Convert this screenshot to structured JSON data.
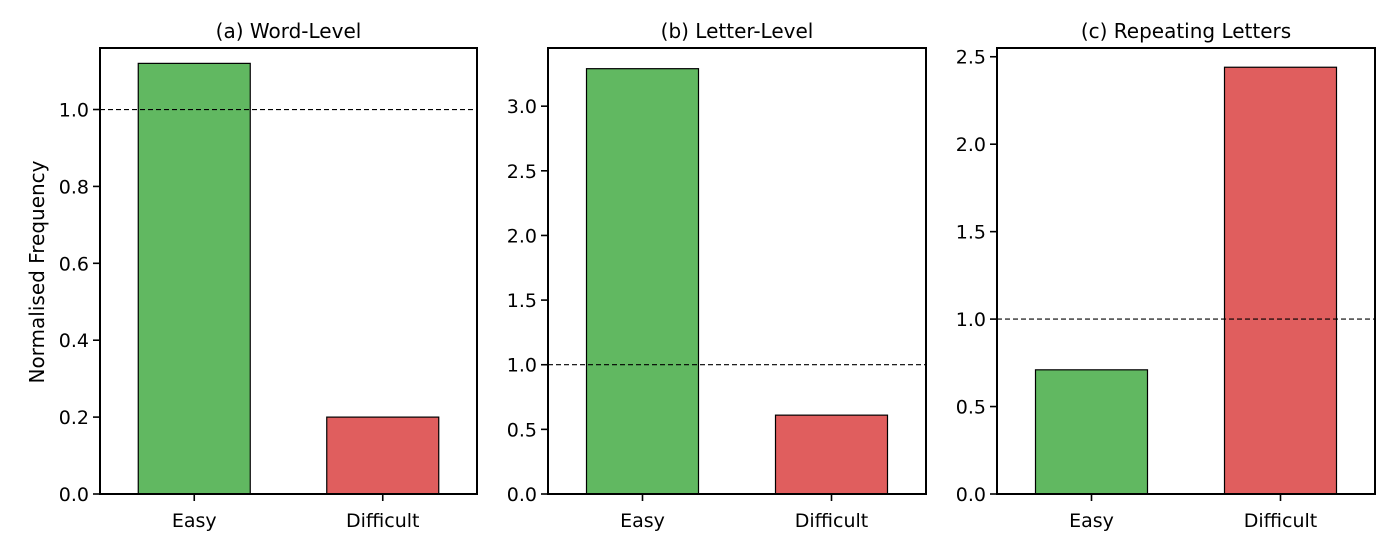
{
  "figure": {
    "ylabel": "Normalised Frequency",
    "reference_value": 1.0
  },
  "chart_data": [
    {
      "type": "bar",
      "title": "(a) Word-Level",
      "categories": [
        "Easy",
        "Difficult"
      ],
      "values": [
        1.12,
        0.2
      ],
      "colors": [
        "#61b861",
        "#e05e5e"
      ],
      "ylim": [
        0,
        1.16
      ],
      "yticks": [
        0.0,
        0.2,
        0.4,
        0.6,
        0.8,
        1.0
      ],
      "ytick_labels": [
        "0.0",
        "0.2",
        "0.4",
        "0.6",
        "0.8",
        "1.0"
      ],
      "reference_line": 1.0,
      "xlabel": "",
      "ylabel": "Normalised Frequency"
    },
    {
      "type": "bar",
      "title": "(b) Letter-Level",
      "categories": [
        "Easy",
        "Difficult"
      ],
      "values": [
        3.29,
        0.61
      ],
      "colors": [
        "#61b861",
        "#e05e5e"
      ],
      "ylim": [
        0,
        3.45
      ],
      "yticks": [
        0.0,
        0.5,
        1.0,
        1.5,
        2.0,
        2.5,
        3.0
      ],
      "ytick_labels": [
        "0.0",
        "0.5",
        "1.0",
        "1.5",
        "2.0",
        "2.5",
        "3.0"
      ],
      "reference_line": 1.0,
      "xlabel": "",
      "ylabel": ""
    },
    {
      "type": "bar",
      "title": "(c) Repeating Letters",
      "categories": [
        "Easy",
        "Difficult"
      ],
      "values": [
        0.71,
        2.44
      ],
      "colors": [
        "#61b861",
        "#e05e5e"
      ],
      "ylim": [
        0,
        2.55
      ],
      "yticks": [
        0.0,
        0.5,
        1.0,
        1.5,
        2.0,
        2.5
      ],
      "ytick_labels": [
        "0.0",
        "0.5",
        "1.0",
        "1.5",
        "2.0",
        "2.5"
      ],
      "reference_line": 1.0,
      "xlabel": "",
      "ylabel": ""
    }
  ]
}
